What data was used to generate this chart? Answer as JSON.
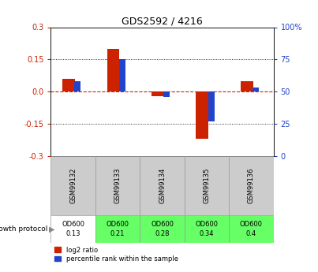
{
  "title": "GDS2592 / 4216",
  "samples": [
    "GSM99132",
    "GSM99133",
    "GSM99134",
    "GSM99135",
    "GSM99136"
  ],
  "log2_ratio": [
    0.06,
    0.2,
    -0.02,
    -0.22,
    0.05
  ],
  "percentile_rank": [
    58,
    75,
    46,
    27,
    53
  ],
  "growth_protocol_labels": [
    "OD600\n0.13",
    "OD600\n0.21",
    "OD600\n0.28",
    "OD600\n0.34",
    "OD600\n0.4"
  ],
  "growth_protocol_colors": [
    "#ffffff",
    "#66ff66",
    "#66ff66",
    "#66ff66",
    "#66ff66"
  ],
  "ylim_left": [
    -0.3,
    0.3
  ],
  "ylim_right": [
    0,
    100
  ],
  "yticks_left": [
    -0.3,
    -0.15,
    0.0,
    0.15,
    0.3
  ],
  "yticks_right": [
    0,
    25,
    50,
    75,
    100
  ],
  "red_color": "#cc2200",
  "blue_color": "#2244cc",
  "bg_color": "#ffffff",
  "legend_red": "log2 ratio",
  "legend_blue": "percentile rank within the sample"
}
